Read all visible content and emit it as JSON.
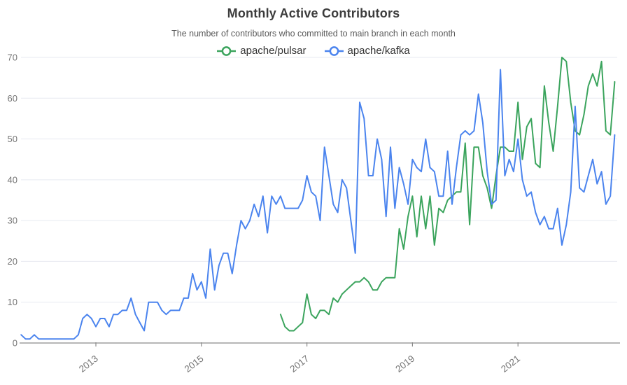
{
  "header": {
    "title": "Monthly Active Contributors",
    "subtitle": "The number of contributors who committed to main branch in each month"
  },
  "legend": {
    "items": [
      {
        "label": "apache/pulsar",
        "color": "#3ba45d"
      },
      {
        "label": "apache/kafka",
        "color": "#4b84ee"
      }
    ]
  },
  "colors": {
    "pulsar_green": "#3ba45d",
    "kafka_blue": "#4b84ee",
    "gridline": "#e7eaf1",
    "axis_line": "#8a8a8a",
    "tick_text": "#757575",
    "title_text": "#3c3c3c"
  },
  "chart_data": {
    "type": "line",
    "title": "Monthly Active Contributors",
    "subtitle": "The number of contributors who committed to main branch in each month",
    "xlabel": "",
    "ylabel": "",
    "ylim": [
      0,
      70
    ],
    "y_ticks": [
      0,
      10,
      20,
      30,
      40,
      50,
      60,
      70
    ],
    "x_tick_years": [
      "2013",
      "2015",
      "2017",
      "2019",
      "2021"
    ],
    "x_start_month": "2011-08",
    "x_end_month": "2022-11",
    "grid": true,
    "legend_position": "top",
    "series": [
      {
        "name": "apache/pulsar",
        "color": "#3ba45d",
        "start_month": "2016-07",
        "values": [
          7,
          4,
          3,
          3,
          4,
          5,
          12,
          7,
          6,
          8,
          8,
          7,
          11,
          10,
          12,
          13,
          14,
          15,
          15,
          16,
          15,
          13,
          13,
          15,
          16,
          16,
          16,
          28,
          23,
          31,
          36,
          26,
          36,
          28,
          36,
          24,
          33,
          32,
          35,
          36,
          37,
          37,
          49,
          29,
          48,
          48,
          41,
          38,
          33,
          41,
          48,
          48,
          47,
          47,
          59,
          45,
          53,
          55,
          44,
          43,
          63,
          54,
          47,
          58,
          70,
          69,
          59,
          52,
          51,
          56,
          63,
          66,
          63,
          69,
          52,
          51,
          64
        ]
      },
      {
        "name": "apache/kafka",
        "color": "#4b84ee",
        "start_month": "2011-08",
        "values": [
          2,
          1,
          1,
          2,
          1,
          1,
          1,
          1,
          1,
          1,
          1,
          1,
          1,
          2,
          6,
          7,
          6,
          4,
          6,
          6,
          4,
          7,
          7,
          8,
          8,
          11,
          7,
          5,
          3,
          10,
          10,
          10,
          8,
          7,
          8,
          8,
          8,
          11,
          11,
          17,
          13,
          15,
          11,
          23,
          13,
          19,
          22,
          22,
          17,
          24,
          30,
          28,
          30,
          34,
          31,
          36,
          27,
          36,
          34,
          36,
          33,
          33,
          33,
          33,
          35,
          41,
          37,
          36,
          30,
          48,
          41,
          34,
          32,
          40,
          38,
          30,
          22,
          59,
          55,
          41,
          41,
          50,
          45,
          31,
          48,
          33,
          43,
          39,
          34,
          45,
          43,
          42,
          50,
          43,
          42,
          36,
          36,
          47,
          34,
          43,
          51,
          52,
          51,
          52,
          61,
          54,
          42,
          34,
          35,
          67,
          41,
          45,
          42,
          50,
          40,
          36,
          37,
          32,
          29,
          31,
          28,
          28,
          33,
          24,
          29,
          37,
          58,
          38,
          37,
          41,
          45,
          39,
          42,
          34,
          36,
          51
        ]
      }
    ]
  }
}
